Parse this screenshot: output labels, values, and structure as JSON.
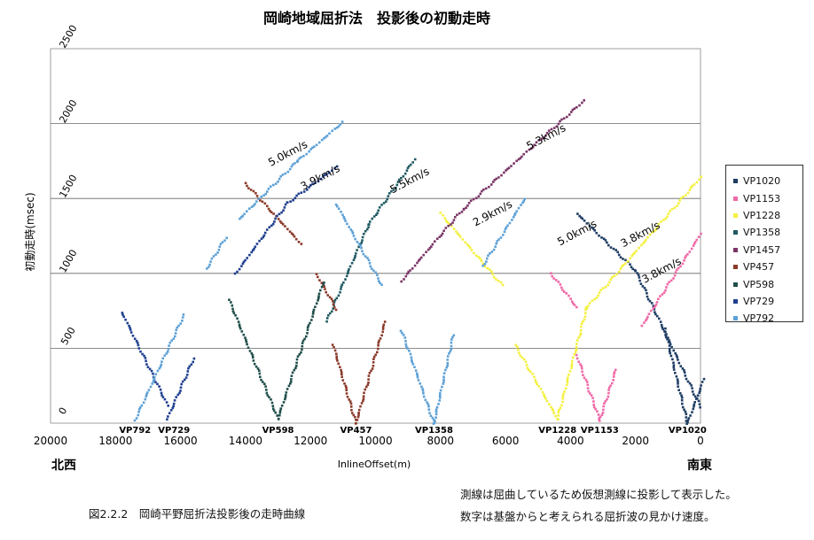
{
  "chart_data": {
    "type": "scatter",
    "title": "岡崎地域屈折法　投影後の初動走時",
    "xlabel": "InlineOffset(m)",
    "ylabel": "初動走時(msec)",
    "xlim": [
      20000,
      0
    ],
    "ylim": [
      0,
      2500
    ],
    "x_ticks": [
      "20000",
      "18000",
      "16000",
      "14000",
      "12000",
      "10000",
      "8000",
      "6000",
      "4000",
      "2000",
      "0"
    ],
    "y_ticks": [
      "0",
      "500",
      "1000",
      "1500",
      "2000",
      "2500"
    ],
    "grid": true,
    "legend_position": "right",
    "direction_left": "北西",
    "direction_right": "南東",
    "vp_labels": [
      {
        "text": "VP792",
        "x": 17400
      },
      {
        "text": "VP729",
        "x": 16200
      },
      {
        "text": "VP598",
        "x": 13000
      },
      {
        "text": "VP457",
        "x": 10600
      },
      {
        "text": "VP1358",
        "x": 8200
      },
      {
        "text": "VP1228",
        "x": 4400
      },
      {
        "text": "VP1153",
        "x": 3100
      },
      {
        "text": "VP1020",
        "x": 400
      }
    ],
    "velocity_labels": [
      {
        "text": "5.0km/s",
        "x": 12650,
        "y": 1780
      },
      {
        "text": "3.9km/s",
        "x": 11650,
        "y": 1620
      },
      {
        "text": "5.5km/s",
        "x": 8900,
        "y": 1600
      },
      {
        "text": "5.3km/s",
        "x": 4700,
        "y": 1890
      },
      {
        "text": "2.9km/s",
        "x": 6350,
        "y": 1380
      },
      {
        "text": "5.0km/s",
        "x": 3750,
        "y": 1250
      },
      {
        "text": "3.8km/s",
        "x": 1800,
        "y": 1240
      },
      {
        "text": "3.8km/s",
        "x": 1150,
        "y": 1000
      }
    ],
    "series": [
      {
        "name": "VP1020",
        "color": "#1f3d63",
        "segments": [
          {
            "x0": 2000,
            "y0": 1020,
            "x1": 0,
            "y1": 110
          },
          {
            "x0": 3800,
            "y0": 1400,
            "x1": 2000,
            "y1": 1020
          },
          {
            "x0": 1100,
            "y0": 630,
            "x1": 400,
            "y1": 0
          },
          {
            "x0": 400,
            "y0": 0,
            "x1": -100,
            "y1": 290
          }
        ]
      },
      {
        "name": "VP1153",
        "color": "#f06aa8",
        "segments": [
          {
            "x0": 4600,
            "y0": 1000,
            "x1": 3800,
            "y1": 770
          },
          {
            "x0": 3800,
            "y0": 450,
            "x1": 3100,
            "y1": 20
          },
          {
            "x0": 3100,
            "y0": 20,
            "x1": 2600,
            "y1": 360
          },
          {
            "x0": 1800,
            "y0": 650,
            "x1": 0,
            "y1": 1260
          }
        ]
      },
      {
        "name": "VP1228",
        "color": "#f4f040",
        "segments": [
          {
            "x0": 8000,
            "y0": 1400,
            "x1": 6100,
            "y1": 920
          },
          {
            "x0": 5700,
            "y0": 520,
            "x1": 4400,
            "y1": 30
          },
          {
            "x0": 4400,
            "y0": 30,
            "x1": 3500,
            "y1": 770
          },
          {
            "x0": 3500,
            "y0": 770,
            "x1": 0,
            "y1": 1640
          }
        ]
      },
      {
        "name": "VP1358",
        "color": "#1f5a62",
        "segments": [
          {
            "x0": 11500,
            "y0": 680,
            "x1": 10200,
            "y1": 1330
          },
          {
            "x0": 10200,
            "y0": 1330,
            "x1": 8800,
            "y1": 1760
          }
        ]
      },
      {
        "name": "VP1457",
        "color": "#7a3566",
        "segments": [
          {
            "x0": 9200,
            "y0": 950,
            "x1": 7300,
            "y1": 1430
          },
          {
            "x0": 7300,
            "y0": 1430,
            "x1": 3600,
            "y1": 2150
          }
        ]
      },
      {
        "name": "VP457",
        "color": "#8b3a2a",
        "segments": [
          {
            "x0": 14000,
            "y0": 1600,
            "x1": 12300,
            "y1": 1200
          },
          {
            "x0": 11800,
            "y0": 990,
            "x1": 11200,
            "y1": 760
          },
          {
            "x0": 11300,
            "y0": 520,
            "x1": 10600,
            "y1": 0
          },
          {
            "x0": 10600,
            "y0": 0,
            "x1": 9700,
            "y1": 680
          }
        ]
      },
      {
        "name": "VP598",
        "color": "#1f4e4a",
        "segments": [
          {
            "x0": 14500,
            "y0": 820,
            "x1": 13000,
            "y1": 30
          },
          {
            "x0": 13000,
            "y0": 30,
            "x1": 11600,
            "y1": 940
          }
        ]
      },
      {
        "name": "VP729",
        "color": "#1f3f8f",
        "segments": [
          {
            "x0": 17800,
            "y0": 740,
            "x1": 16400,
            "y1": 120
          },
          {
            "x0": 16400,
            "y0": 30,
            "x1": 15600,
            "y1": 430
          },
          {
            "x0": 14300,
            "y0": 1000,
            "x1": 12700,
            "y1": 1470
          },
          {
            "x0": 12700,
            "y0": 1470,
            "x1": 11200,
            "y1": 1710
          }
        ]
      },
      {
        "name": "VP792",
        "color": "#5ea1d6",
        "segments": [
          {
            "x0": 17400,
            "y0": 20,
            "x1": 15900,
            "y1": 720
          },
          {
            "x0": 15200,
            "y0": 1030,
            "x1": 14600,
            "y1": 1240
          },
          {
            "x0": 14200,
            "y0": 1360,
            "x1": 12400,
            "y1": 1750
          },
          {
            "x0": 12400,
            "y0": 1750,
            "x1": 11000,
            "y1": 2010
          },
          {
            "x0": 11200,
            "y0": 1460,
            "x1": 9800,
            "y1": 920
          },
          {
            "x0": 9200,
            "y0": 620,
            "x1": 8200,
            "y1": 0
          },
          {
            "x0": 8200,
            "y0": 0,
            "x1": 7600,
            "y1": 590
          },
          {
            "x0": 6700,
            "y0": 1050,
            "x1": 5400,
            "y1": 1500
          }
        ]
      }
    ]
  },
  "caption": "図2.2.2　岡崎平野屈折法投影後の走時曲線",
  "notes": [
    "測線は屈曲しているため仮想測線に投影して表示した。",
    "数字は基盤からと考えられる屈折波の見かけ速度。"
  ]
}
